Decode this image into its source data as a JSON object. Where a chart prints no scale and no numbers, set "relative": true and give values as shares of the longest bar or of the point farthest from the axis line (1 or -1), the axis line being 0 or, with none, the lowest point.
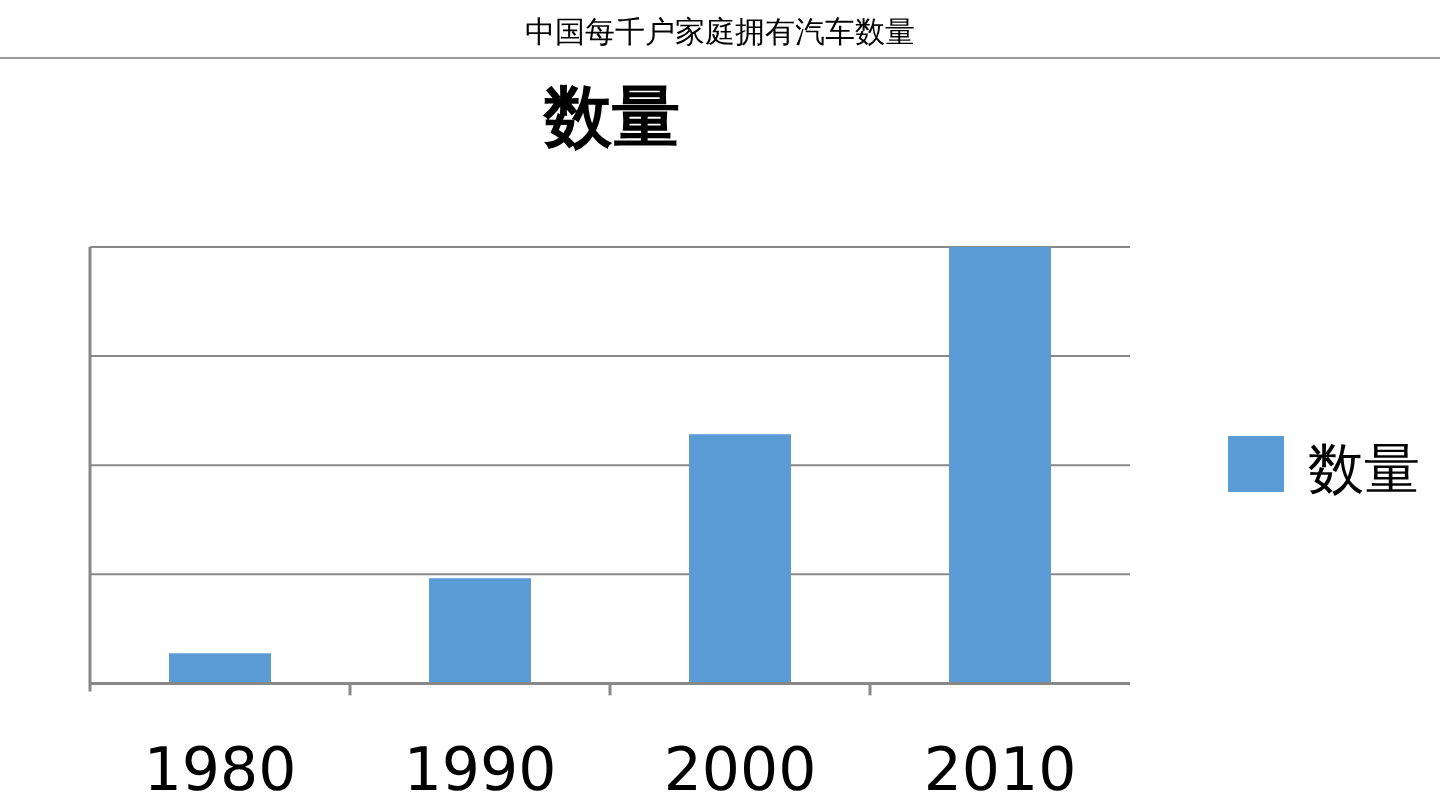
{
  "chart_data": {
    "type": "bar",
    "title": "中国每千户家庭拥有汽车数量",
    "subtitle": "数量",
    "categories": [
      "1980",
      "1990",
      "2000",
      "2010"
    ],
    "series": [
      {
        "name": "数量",
        "color": "#5b9bd5",
        "values": [
          0.069,
          0.241,
          0.571,
          1
        ]
      }
    ],
    "relative": true,
    "grid": "y",
    "legend": "right"
  }
}
